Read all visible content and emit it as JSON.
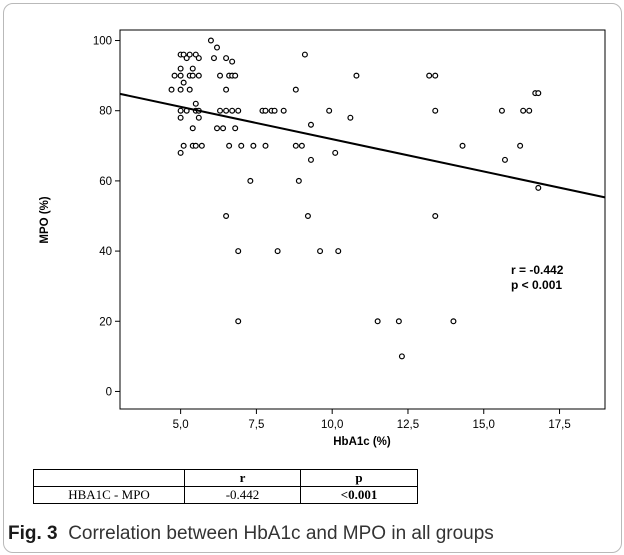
{
  "chart_data": {
    "type": "scatter",
    "xlabel": "HbA1c (%)",
    "ylabel": "MPO (%)",
    "xlim": [
      3.0,
      19.0
    ],
    "ylim": [
      -5,
      103
    ],
    "xticks": [
      5.0,
      7.5,
      10.0,
      12.5,
      15.0,
      17.5
    ],
    "xtick_labels": [
      "5,0",
      "7,5",
      "10,0",
      "12,5",
      "15,0",
      "17,5"
    ],
    "yticks": [
      0,
      20,
      40,
      60,
      80,
      100
    ],
    "ytick_labels": [
      "0",
      "20",
      "40",
      "60",
      "80",
      "100"
    ],
    "grid": false,
    "annotation": [
      "r = -0.442",
      "p < 0.001"
    ],
    "fit_line": {
      "x": [
        3.0,
        19.0
      ],
      "y": [
        84.8,
        55.3
      ]
    },
    "points": [
      [
        4.7,
        86
      ],
      [
        4.8,
        90
      ],
      [
        5.0,
        96
      ],
      [
        5.0,
        92
      ],
      [
        5.0,
        90
      ],
      [
        5.0,
        86
      ],
      [
        5.0,
        80
      ],
      [
        5.0,
        78
      ],
      [
        5.0,
        68
      ],
      [
        5.1,
        96
      ],
      [
        5.1,
        88
      ],
      [
        5.1,
        70
      ],
      [
        5.2,
        95
      ],
      [
        5.2,
        80
      ],
      [
        5.3,
        96
      ],
      [
        5.3,
        90
      ],
      [
        5.3,
        86
      ],
      [
        5.4,
        92
      ],
      [
        5.4,
        90
      ],
      [
        5.4,
        75
      ],
      [
        5.4,
        70
      ],
      [
        5.5,
        96
      ],
      [
        5.5,
        82
      ],
      [
        5.5,
        80
      ],
      [
        5.5,
        70
      ],
      [
        5.6,
        95
      ],
      [
        5.6,
        90
      ],
      [
        5.6,
        80
      ],
      [
        5.6,
        78
      ],
      [
        5.7,
        70
      ],
      [
        6.0,
        100
      ],
      [
        6.1,
        95
      ],
      [
        6.2,
        98
      ],
      [
        6.2,
        75
      ],
      [
        6.3,
        90
      ],
      [
        6.3,
        80
      ],
      [
        6.4,
        75
      ],
      [
        6.5,
        95
      ],
      [
        6.5,
        86
      ],
      [
        6.5,
        80
      ],
      [
        6.5,
        50
      ],
      [
        6.6,
        90
      ],
      [
        6.6,
        70
      ],
      [
        6.7,
        94
      ],
      [
        6.7,
        90
      ],
      [
        6.7,
        80
      ],
      [
        6.8,
        90
      ],
      [
        6.8,
        75
      ],
      [
        6.9,
        80
      ],
      [
        6.9,
        40
      ],
      [
        6.9,
        20
      ],
      [
        7.0,
        70
      ],
      [
        7.3,
        60
      ],
      [
        7.4,
        70
      ],
      [
        7.7,
        80
      ],
      [
        7.8,
        80
      ],
      [
        7.8,
        70
      ],
      [
        8.0,
        80
      ],
      [
        8.1,
        80
      ],
      [
        8.2,
        40
      ],
      [
        8.4,
        80
      ],
      [
        8.8,
        86
      ],
      [
        8.8,
        70
      ],
      [
        8.9,
        60
      ],
      [
        9.0,
        70
      ],
      [
        9.1,
        96
      ],
      [
        9.2,
        50
      ],
      [
        9.3,
        76
      ],
      [
        9.3,
        66
      ],
      [
        9.6,
        40
      ],
      [
        9.9,
        80
      ],
      [
        10.1,
        68
      ],
      [
        10.2,
        40
      ],
      [
        10.6,
        78
      ],
      [
        10.8,
        90
      ],
      [
        11.5,
        20
      ],
      [
        12.2,
        20
      ],
      [
        12.3,
        10
      ],
      [
        13.2,
        90
      ],
      [
        13.4,
        90
      ],
      [
        13.4,
        80
      ],
      [
        13.4,
        50
      ],
      [
        14.0,
        20
      ],
      [
        14.3,
        70
      ],
      [
        15.6,
        80
      ],
      [
        15.7,
        66
      ],
      [
        16.2,
        70
      ],
      [
        16.3,
        80
      ],
      [
        16.5,
        80
      ],
      [
        16.7,
        85
      ],
      [
        16.8,
        85
      ],
      [
        16.8,
        58
      ]
    ]
  },
  "table": {
    "headers": [
      "",
      "r",
      "p"
    ],
    "row": [
      "HBA1C - MPO",
      "-0.442",
      "<0.001"
    ]
  },
  "caption": {
    "label": "Fig. 3",
    "text": "Correlation between HbA1c and MPO in all groups"
  }
}
